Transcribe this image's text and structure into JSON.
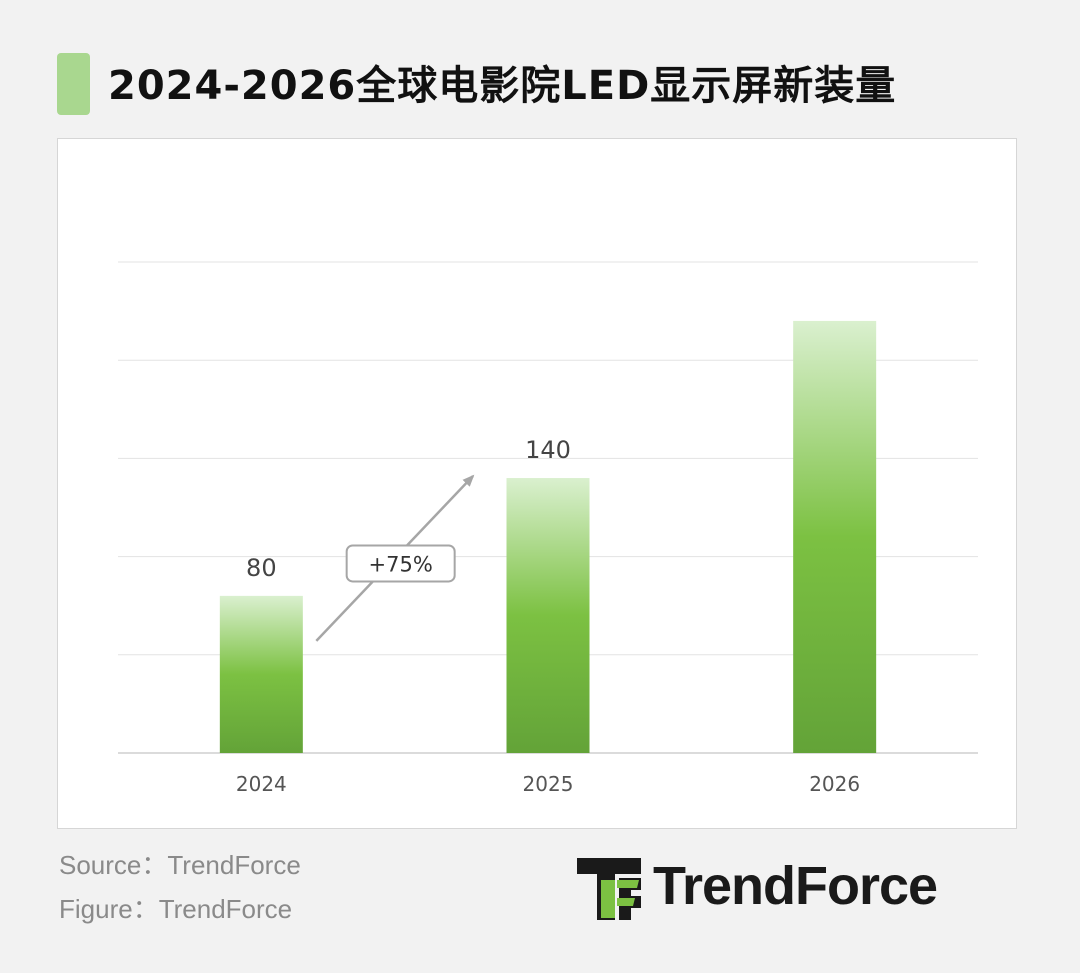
{
  "title": "2024-2026全球电影院LED显示屏新装量",
  "colors": {
    "bar_top": "#d9efcd",
    "bar_mid": "#7cc142",
    "bar_bottom": "#63a338",
    "accent": "#a9d78f"
  },
  "chart_data": {
    "type": "bar",
    "categories": [
      "2024",
      "2025",
      "2026"
    ],
    "values": [
      80,
      140,
      220
    ],
    "data_labels": [
      "80",
      "140",
      ""
    ],
    "ylim": [
      0,
      250
    ],
    "grid": true,
    "annotation": {
      "text": "+75%",
      "from": "2024",
      "to": "2025"
    }
  },
  "footer": {
    "source": "Source：TrendForce",
    "figure": "Figure：TrendForce"
  },
  "logo": {
    "text": "TrendForce"
  }
}
